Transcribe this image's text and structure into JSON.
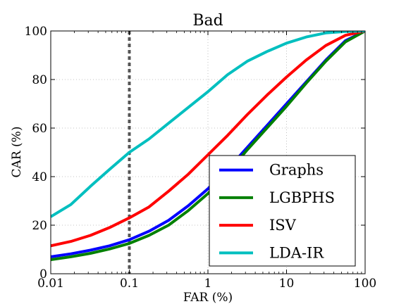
{
  "chart_data": {
    "type": "line",
    "title": "Bad",
    "xlabel": "FAR (%)",
    "ylabel": "CAR (%)",
    "xscale": "log",
    "xlim": [
      0.01,
      100
    ],
    "ylim": [
      0,
      100
    ],
    "x_ticks": [
      {
        "value": 0.01,
        "label": "0.01"
      },
      {
        "value": 0.1,
        "label": "0.1"
      },
      {
        "value": 1,
        "label": "1"
      },
      {
        "value": 10,
        "label": "10"
      },
      {
        "value": 100,
        "label": "100"
      }
    ],
    "y_ticks": [
      {
        "value": 0,
        "label": "0"
      },
      {
        "value": 20,
        "label": "20"
      },
      {
        "value": 40,
        "label": "40"
      },
      {
        "value": 60,
        "label": "60"
      },
      {
        "value": 80,
        "label": "80"
      },
      {
        "value": 100,
        "label": "100"
      }
    ],
    "grid": true,
    "legend_position": "bottom-right",
    "threshold_line": {
      "x": 0.1,
      "color": "#555555",
      "style": "dashed"
    },
    "series": [
      {
        "name": "Graphs",
        "color": "#0000ff",
        "x": [
          0.01,
          0.018,
          0.032,
          0.056,
          0.1,
          0.178,
          0.316,
          0.562,
          1,
          1.78,
          3.16,
          5.62,
          10,
          17.8,
          31.6,
          56.2,
          100
        ],
        "y": [
          7,
          8.2,
          9.7,
          11.5,
          14,
          17.5,
          22,
          28,
          35,
          43,
          52,
          61,
          70,
          79,
          88,
          96,
          100
        ]
      },
      {
        "name": "LGBPHS",
        "color": "#008000",
        "x": [
          0.01,
          0.018,
          0.032,
          0.056,
          0.1,
          0.178,
          0.316,
          0.562,
          1,
          1.78,
          3.16,
          5.62,
          10,
          17.8,
          31.6,
          56.2,
          100
        ],
        "y": [
          5.8,
          7,
          8.4,
          10.2,
          12.5,
          15.8,
          20,
          26,
          33,
          41.5,
          51,
          60,
          69,
          78.5,
          87.5,
          95.5,
          100
        ]
      },
      {
        "name": "ISV",
        "color": "#ff0000",
        "x": [
          0.01,
          0.018,
          0.032,
          0.056,
          0.1,
          0.178,
          0.316,
          0.562,
          1,
          1.78,
          3.16,
          5.62,
          10,
          17.8,
          31.6,
          56.2,
          100
        ],
        "y": [
          11.5,
          13.3,
          15.8,
          19,
          23,
          27.5,
          34,
          41,
          49,
          57,
          65.5,
          73.5,
          81,
          88,
          94,
          98.2,
          100
        ]
      },
      {
        "name": "LDA-IR",
        "color": "#00bfbf",
        "x": [
          0.01,
          0.018,
          0.032,
          0.056,
          0.1,
          0.178,
          0.316,
          0.562,
          1,
          1.78,
          3.16,
          5.62,
          10,
          17.8,
          31.6,
          56.2,
          100
        ],
        "y": [
          23.5,
          28.5,
          36,
          43,
          50,
          55.5,
          62,
          68.5,
          75,
          82,
          87.5,
          91.5,
          95,
          97.5,
          99.2,
          99.8,
          100
        ]
      }
    ]
  }
}
